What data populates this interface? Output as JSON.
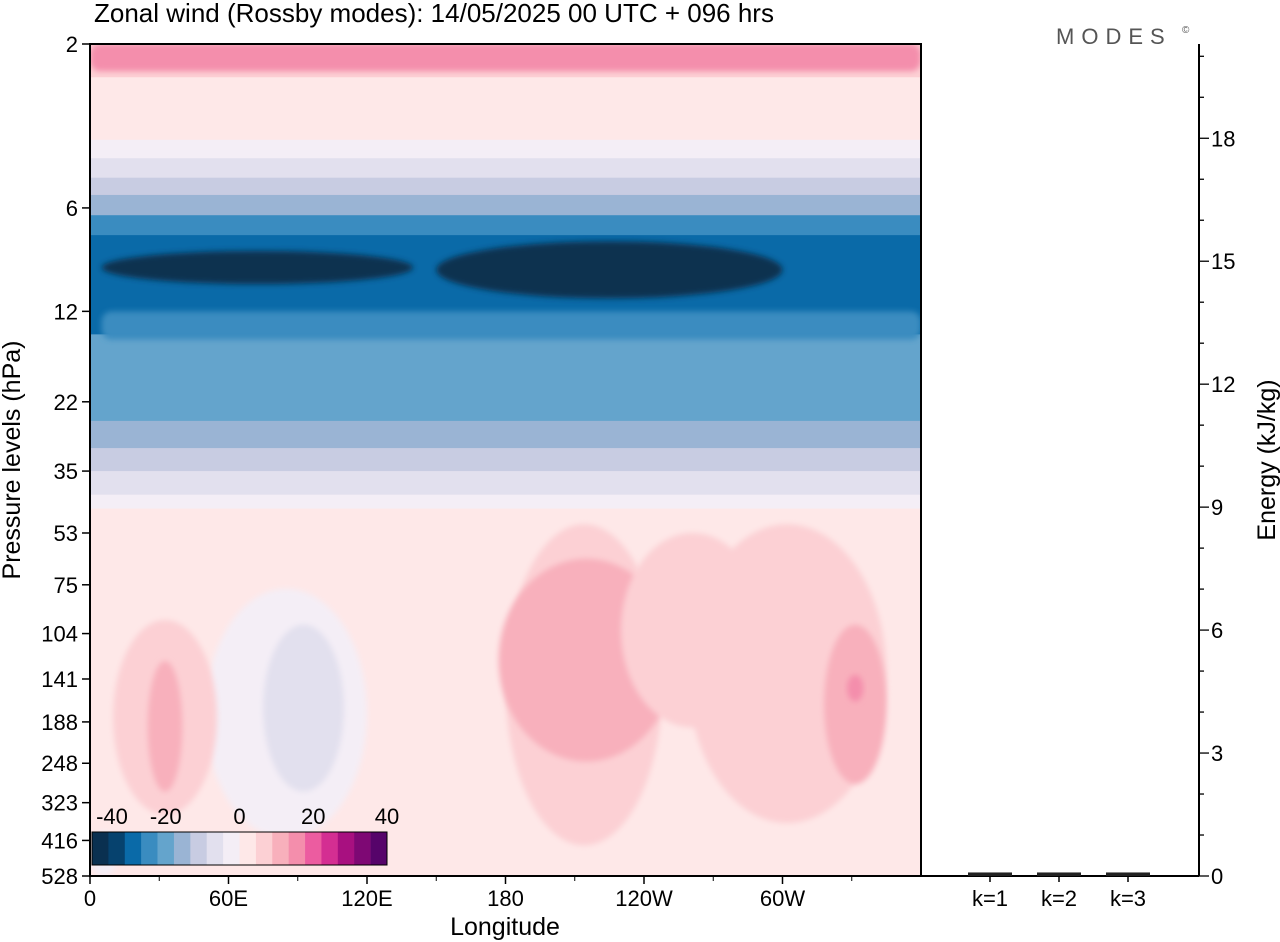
{
  "header": {
    "title": "Zonal wind (Rossby modes):  14/05/2025  00 UTC  + 096 hrs",
    "brand": "MODES",
    "brand_mark": "©"
  },
  "chart_data": [
    {
      "type": "heatmap",
      "title": "Zonal wind (Rossby modes):  14/05/2025  00 UTC  + 096 hrs",
      "xlabel": "Longitude",
      "ylabel": "Pressure levels (hPa)",
      "x_ticks": [
        "0",
        "60E",
        "120E",
        "180",
        "120W",
        "60W"
      ],
      "x_tick_degrees": [
        0,
        60,
        120,
        180,
        240,
        300
      ],
      "xlim": [
        0,
        360
      ],
      "y_ticks": [
        "2",
        "6",
        "12",
        "22",
        "35",
        "53",
        "75",
        "104",
        "141",
        "188",
        "248",
        "323",
        "416",
        "528"
      ],
      "ylim": [
        2,
        528
      ],
      "y_direction": "pressure decreasing upward",
      "colorbar": {
        "tick_labels": [
          "-40",
          "-20",
          "0",
          "20",
          "40"
        ],
        "colors": [
          "#0a3050",
          "#06426e",
          "#0a6aa8",
          "#3a8cc0",
          "#64a4cc",
          "#9ab4d4",
          "#c8cce2",
          "#e2e0ee",
          "#f4eef6",
          "#fee8e8",
          "#fcd0d4",
          "#f8b0bc",
          "#f48eac",
          "#ec5ca0",
          "#d42e92",
          "#a81080",
          "#7e0874",
          "#56046a"
        ]
      },
      "bands": [
        {
          "level_top": 2,
          "level_bottom": 2.5,
          "value": 8
        },
        {
          "level_top": 2.5,
          "level_bottom": 3.3,
          "value": 4
        },
        {
          "level_top": 3.3,
          "level_bottom": 3.8,
          "value": 0
        },
        {
          "level_top": 3.8,
          "level_bottom": 4.3,
          "value": -4
        },
        {
          "level_top": 4.3,
          "level_bottom": 4.9,
          "value": -8
        },
        {
          "level_top": 4.9,
          "level_bottom": 5.5,
          "value": -12
        },
        {
          "level_top": 5.5,
          "level_bottom": 6.3,
          "value": -16
        },
        {
          "level_top": 6.3,
          "level_bottom": 7.2,
          "value": -24
        },
        {
          "level_top": 7.2,
          "level_bottom": 14,
          "value": -28
        },
        {
          "level_top": 14,
          "level_bottom": 25,
          "value": -20
        },
        {
          "level_top": 25,
          "level_bottom": 30,
          "value": -16
        },
        {
          "level_top": 30,
          "level_bottom": 35,
          "value": -12
        },
        {
          "level_top": 35,
          "level_bottom": 41,
          "value": -8
        },
        {
          "level_top": 41,
          "level_bottom": 45,
          "value": -4
        },
        {
          "level_top": 45,
          "level_bottom": 528,
          "value": 2
        }
      ],
      "features": [
        {
          "lon": [
            0,
            360
          ],
          "level": [
            2,
            2.4
          ],
          "value": 16
        },
        {
          "lon": [
            5,
            140
          ],
          "level": [
            8,
            10
          ],
          "value": -36
        },
        {
          "lon": [
            150,
            300
          ],
          "level": [
            7.5,
            11
          ],
          "value": -36
        },
        {
          "lon": [
            5,
            360
          ],
          "level": [
            12,
            14.5
          ],
          "value": -24
        },
        {
          "lon": [
            15,
            155
          ],
          "level": [
            52,
            410
          ],
          "value": 2
        },
        {
          "lon": [
            50,
            120
          ],
          "level": [
            77,
            410
          ],
          "value": -2
        },
        {
          "lon": [
            75,
            110
          ],
          "level": [
            98,
            300
          ],
          "value": -5
        },
        {
          "lon": [
            10,
            55
          ],
          "level": [
            95,
            350
          ],
          "value": 6
        },
        {
          "lon": [
            25,
            40
          ],
          "level": [
            125,
            300
          ],
          "value": 10
        },
        {
          "lon": [
            180,
            248
          ],
          "level": [
            50,
            430
          ],
          "value": 6
        },
        {
          "lon": [
            177,
            253
          ],
          "level": [
            63,
            245
          ],
          "value": 10
        },
        {
          "lon": [
            230,
            292
          ],
          "level": [
            53,
            195
          ],
          "value": 6
        },
        {
          "lon": [
            259,
            345
          ],
          "level": [
            50,
            370
          ],
          "value": 6
        },
        {
          "lon": [
            318,
            345
          ],
          "level": [
            98,
            285
          ],
          "value": 10
        },
        {
          "lon": [
            328,
            335
          ],
          "level": [
            137,
            164
          ],
          "value": 16
        },
        {
          "lon": [
            0,
            12
          ],
          "level": [
            392,
            528
          ],
          "value": -2
        }
      ]
    },
    {
      "type": "bar",
      "ylabel": "Energy (kJ/kg)",
      "categories": [
        "k=1",
        "k=2",
        "k=3"
      ],
      "values": [
        0.05,
        0.05,
        0.05
      ],
      "ylim": [
        0,
        20.3
      ],
      "y_ticks": [
        0,
        3,
        6,
        9,
        12,
        15,
        18
      ]
    }
  ]
}
